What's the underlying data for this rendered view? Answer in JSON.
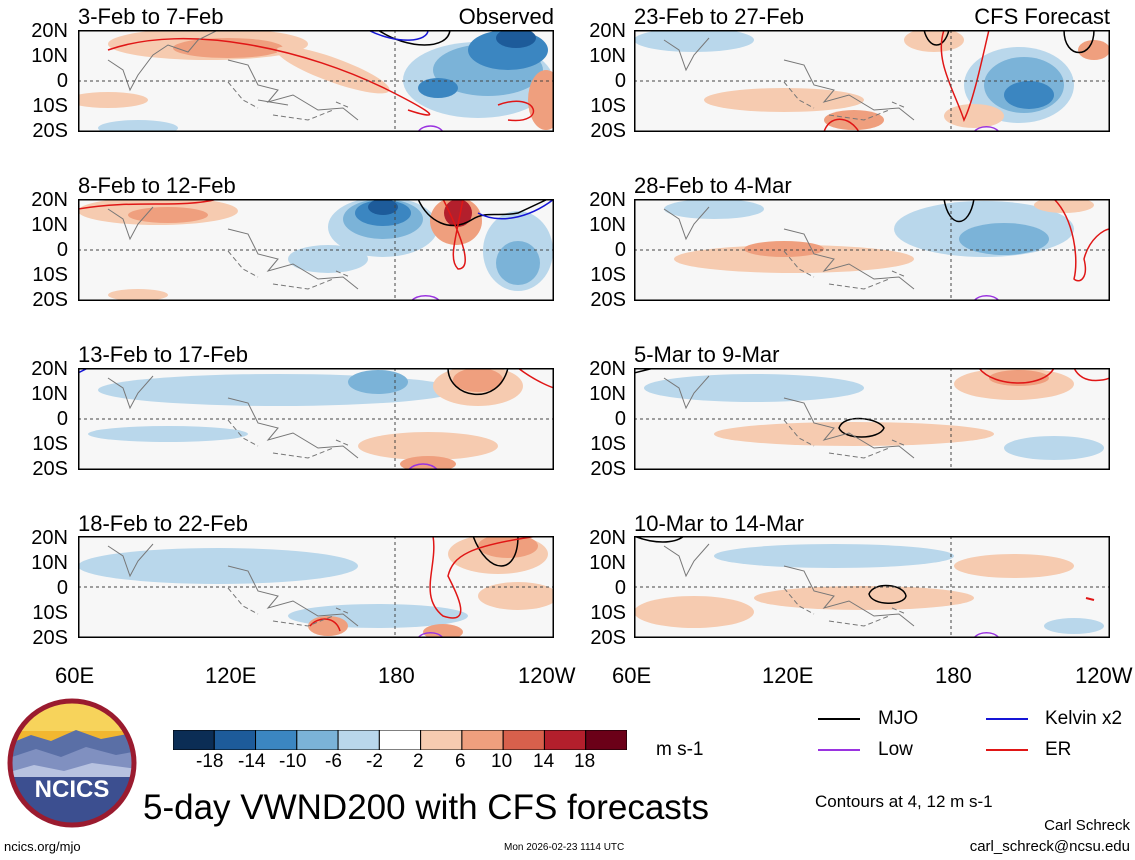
{
  "header": {
    "observed_label": "Observed",
    "forecast_label": "CFS Forecast"
  },
  "panels": [
    {
      "title": "3-Feb to 7-Feb",
      "column": "observed"
    },
    {
      "title": "8-Feb to 12-Feb",
      "column": "observed"
    },
    {
      "title": "13-Feb to 17-Feb",
      "column": "observed"
    },
    {
      "title": "18-Feb to 22-Feb",
      "column": "observed"
    },
    {
      "title": "23-Feb to 27-Feb",
      "column": "forecast"
    },
    {
      "title": "28-Feb to 4-Mar",
      "column": "forecast"
    },
    {
      "title": "5-Mar to 9-Mar",
      "column": "forecast"
    },
    {
      "title": "10-Mar to 14-Mar",
      "column": "forecast"
    }
  ],
  "axes": {
    "lat_labels": [
      "20N",
      "10N",
      "0",
      "10S",
      "20S"
    ],
    "lon_labels": [
      "60E",
      "120E",
      "180",
      "120W"
    ]
  },
  "colorbar": {
    "labels": [
      "-18",
      "-14",
      "-10",
      "-6",
      "-2",
      "2",
      "6",
      "10",
      "14",
      "18"
    ],
    "units": "m s-1",
    "colors": [
      "#0b2d55",
      "#1d5b9a",
      "#3b86c1",
      "#7bb3d8",
      "#b9d7eb",
      "#ffffff",
      "#f6cbb0",
      "#ef9f7e",
      "#d8604c",
      "#b31f2c",
      "#6b0018"
    ]
  },
  "legend": {
    "items": [
      {
        "label": "MJO",
        "color": "#000000"
      },
      {
        "label": "Kelvin x2",
        "color": "#1515d6"
      },
      {
        "label": "Low",
        "color": "#9a33e0"
      },
      {
        "label": "ER",
        "color": "#e01616"
      }
    ],
    "contour_note": "Contours at 4, 12 m s-1"
  },
  "main_title": "5-day VWND200 with CFS forecasts",
  "logo_text": "NCICS",
  "footer": {
    "url": "ncics.org/mjo",
    "timestamp": "Mon 2026-02-23 1114 UTC",
    "author": "Carl Schreck",
    "email": "carl_schreck@ncsu.edu"
  }
}
